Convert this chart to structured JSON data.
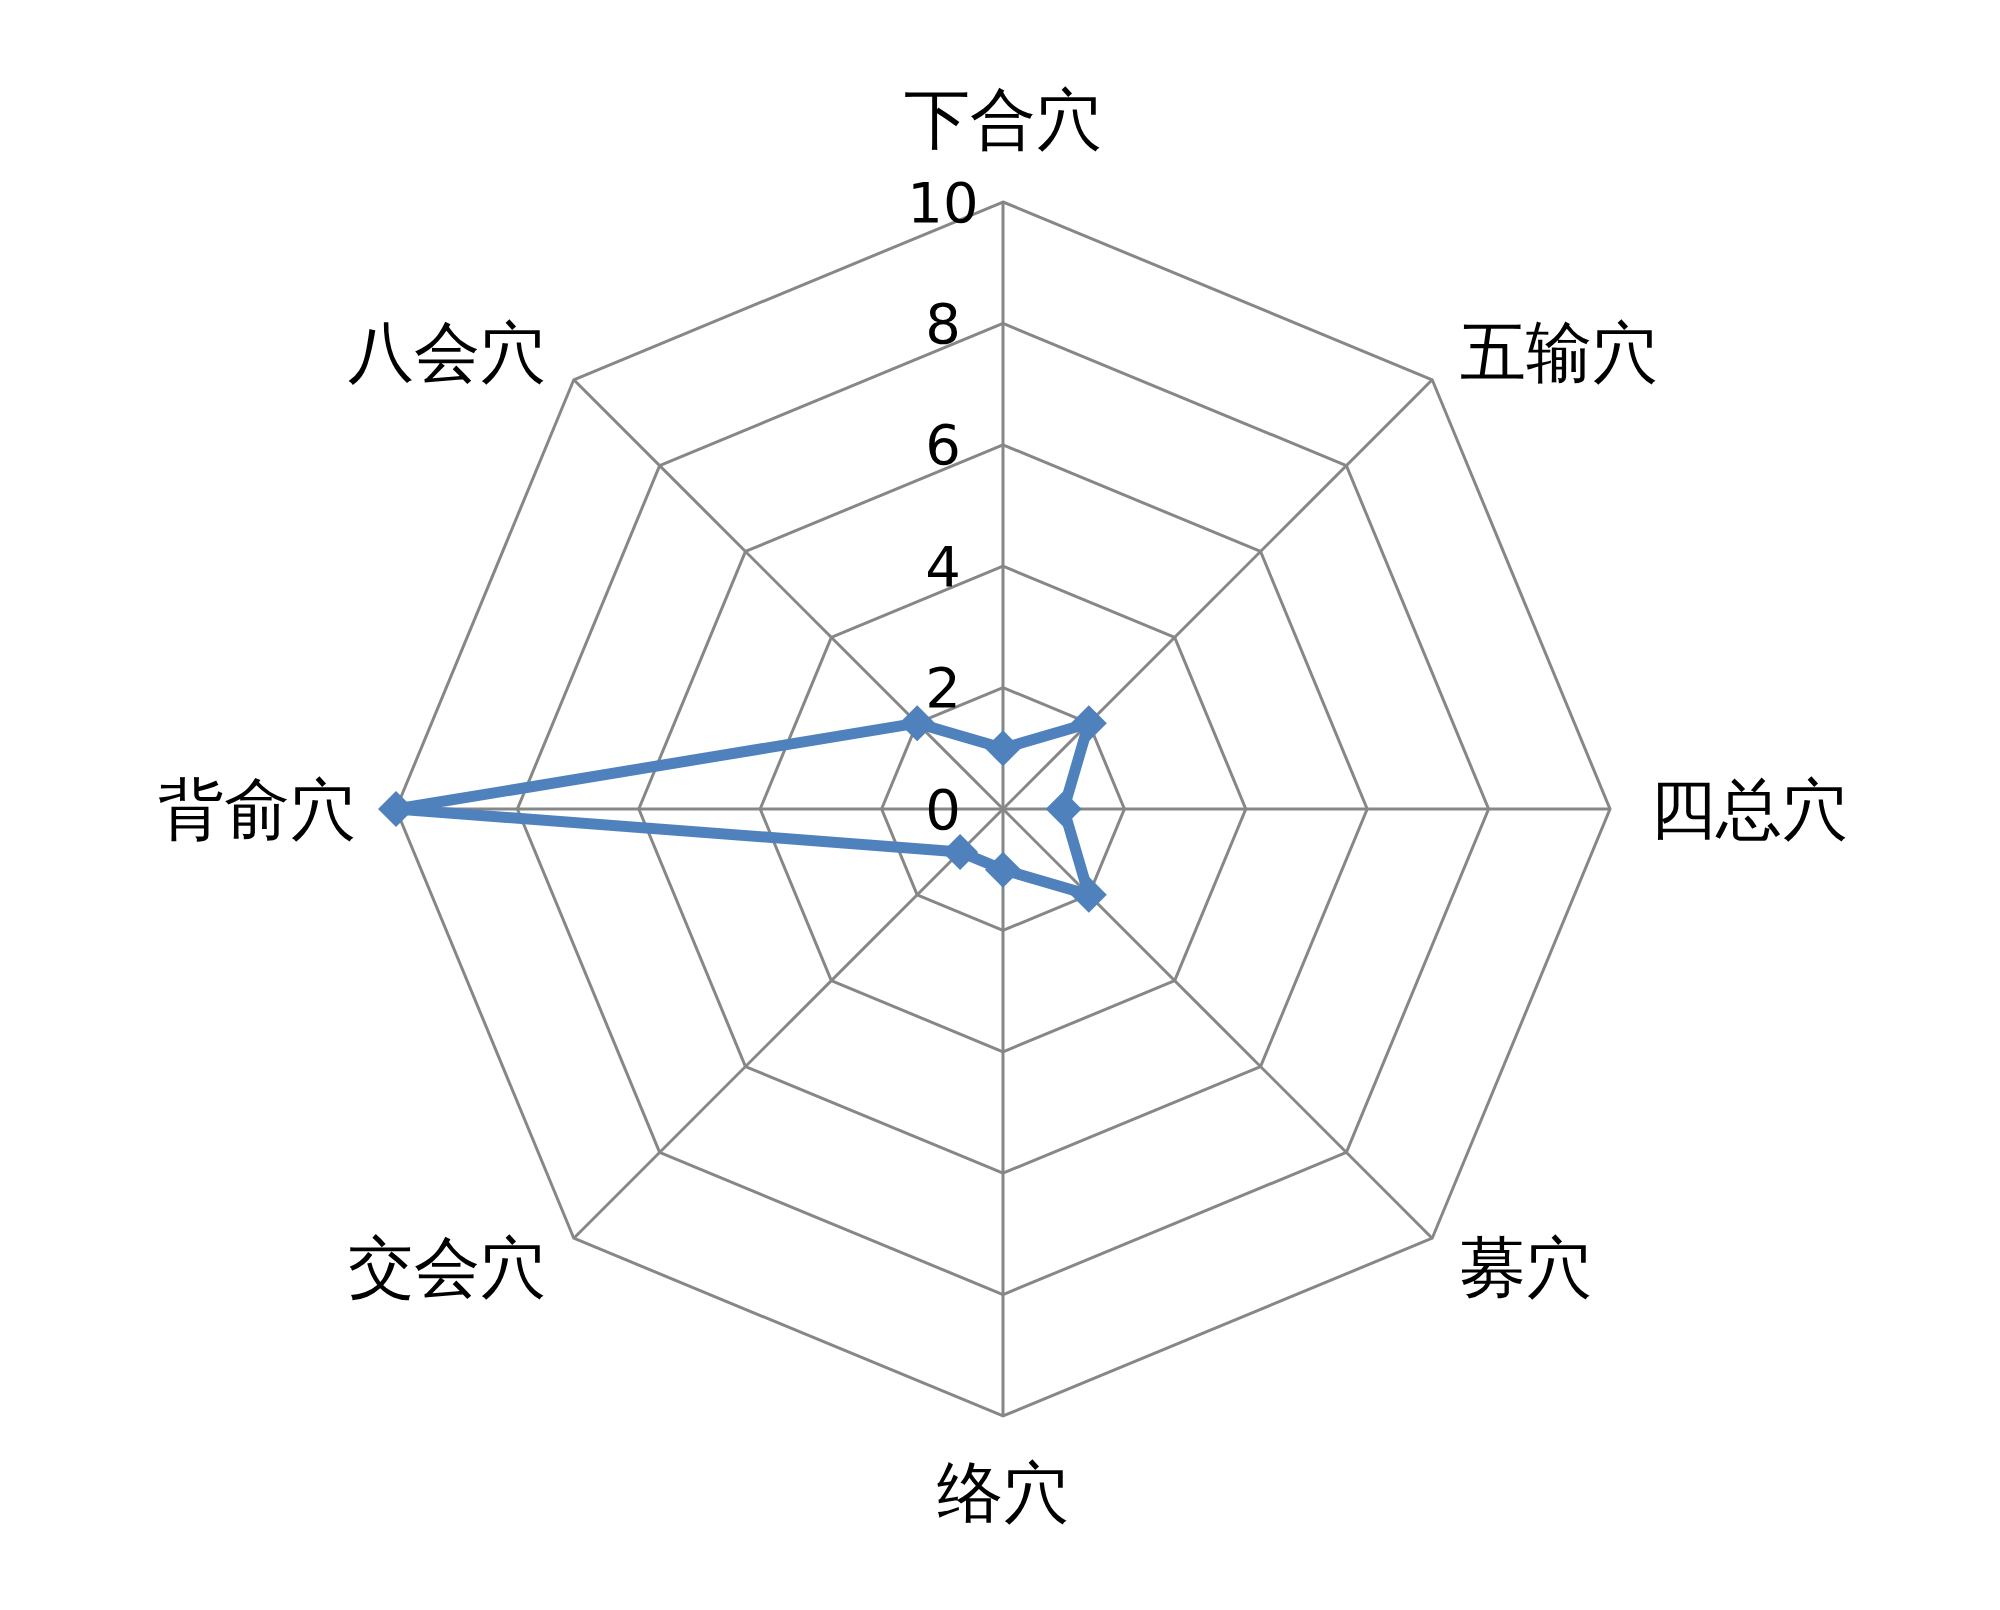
{
  "chart_data": {
    "type": "radar",
    "categories": [
      "下合穴",
      "五输穴",
      "四总穴",
      "募穴",
      "络穴",
      "交会穴",
      "背俞穴",
      "八会穴"
    ],
    "series": [
      {
        "color": "#4f81bd",
        "values": [
          1,
          2,
          1,
          2,
          1,
          1,
          10,
          2
        ]
      }
    ],
    "ylim": [
      0,
      10
    ],
    "yticks": [
      0,
      2,
      4,
      6,
      8,
      10
    ],
    "grid": true,
    "marker": "diamond",
    "line_style": "solid"
  }
}
